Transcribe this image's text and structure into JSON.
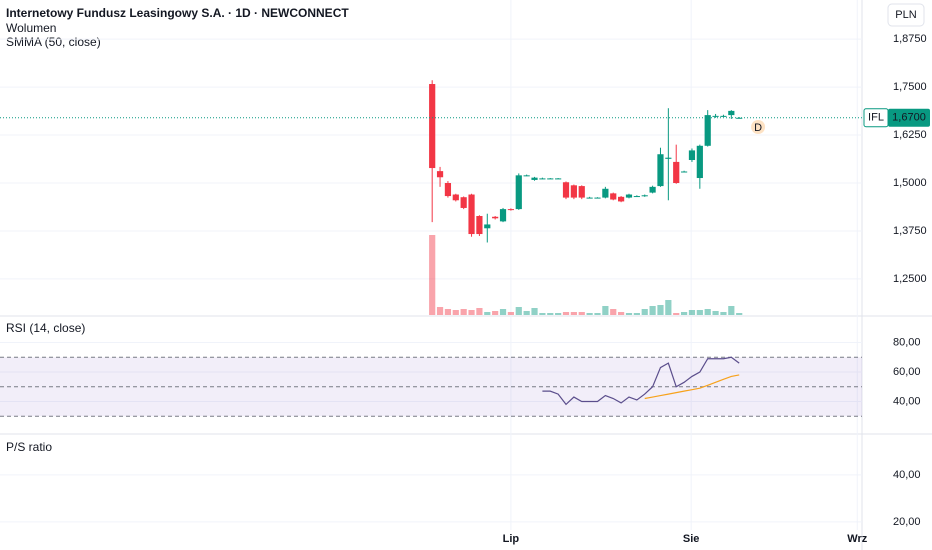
{
  "chart_data": {
    "type": "candlestick",
    "title": "Internetowy Fundusz Leasingowy S.A. · 1D · NEWCONNECT",
    "legend_items": [
      "Wolumen",
      "SMMA (50, close)"
    ],
    "currency": "PLN",
    "symbol": "IFL",
    "last_price": {
      "value": 1.67,
      "label": "1,6700"
    },
    "up_color": "#089981",
    "down_color": "#f23645",
    "grid": true,
    "x": [
      0,
      1,
      2,
      3,
      4,
      5,
      6,
      7,
      8,
      9,
      10,
      11,
      12,
      13,
      14,
      15,
      16,
      17,
      18,
      19,
      20,
      21,
      22,
      23,
      24,
      25,
      26,
      27,
      28,
      29,
      30,
      31,
      32,
      33,
      34,
      35,
      36,
      37,
      38,
      39
    ],
    "open": [
      1.758,
      1.531,
      1.5,
      1.47,
      1.463,
      1.47,
      1.414,
      1.382,
      1.412,
      1.4,
      1.432,
      1.432,
      1.52,
      1.508,
      1.512,
      1.512,
      1.512,
      1.502,
      1.494,
      1.492,
      1.462,
      1.462,
      1.462,
      1.473,
      1.464,
      1.462,
      1.466,
      1.466,
      1.475,
      1.492,
      1.563,
      1.555,
      1.53,
      1.56,
      1.513,
      1.597,
      1.675,
      1.675,
      1.677,
      1.67
    ],
    "high": [
      1.768,
      1.542,
      1.505,
      1.472,
      1.465,
      1.472,
      1.416,
      1.42,
      1.414,
      1.435,
      1.434,
      1.525,
      1.522,
      1.516,
      1.514,
      1.513,
      1.513,
      1.504,
      1.496,
      1.494,
      1.464,
      1.463,
      1.49,
      1.475,
      1.466,
      1.472,
      1.468,
      1.47,
      1.493,
      1.592,
      1.695,
      1.6,
      1.532,
      1.59,
      1.6,
      1.69,
      1.68,
      1.678,
      1.69,
      1.672
    ],
    "low": [
      1.398,
      1.49,
      1.462,
      1.452,
      1.432,
      1.36,
      1.362,
      1.345,
      1.405,
      1.398,
      1.428,
      1.43,
      1.518,
      1.506,
      1.51,
      1.511,
      1.511,
      1.458,
      1.458,
      1.458,
      1.46,
      1.461,
      1.46,
      1.455,
      1.45,
      1.46,
      1.464,
      1.464,
      1.473,
      1.49,
      1.455,
      1.498,
      1.528,
      1.555,
      1.485,
      1.595,
      1.67,
      1.672,
      1.667,
      1.668
    ],
    "close": [
      1.539,
      1.515,
      1.466,
      1.455,
      1.435,
      1.367,
      1.367,
      1.392,
      1.408,
      1.432,
      1.43,
      1.52,
      1.52,
      1.514,
      1.512,
      1.512,
      1.512,
      1.462,
      1.462,
      1.462,
      1.462,
      1.462,
      1.485,
      1.457,
      1.452,
      1.47,
      1.466,
      1.468,
      1.49,
      1.575,
      1.566,
      1.5,
      1.53,
      1.585,
      1.597,
      1.677,
      1.675,
      1.675,
      1.688,
      1.67
    ],
    "volume": [
      80,
      8,
      6,
      5,
      6,
      5,
      7,
      3,
      4,
      6,
      3,
      8,
      4,
      7,
      2,
      2,
      2,
      3,
      3,
      3,
      2,
      2,
      9,
      6,
      3,
      2,
      2,
      6,
      9,
      10,
      15,
      2,
      3,
      5,
      5,
      6,
      4,
      3,
      9,
      2
    ],
    "xlim": [
      -54.9,
      54.6
    ],
    "xticks": [
      {
        "value": 10,
        "label": "Lip"
      },
      {
        "value": 32.9,
        "label": "Sie"
      },
      {
        "value": 54,
        "label": "Wrz"
      }
    ],
    "ylim": [
      1.156,
      1.977
    ],
    "yticks": [
      {
        "value": 1.25,
        "label": "1,2500"
      },
      {
        "value": 1.375,
        "label": "1,3750"
      },
      {
        "value": 1.5,
        "label": "1,5000"
      },
      {
        "value": 1.625,
        "label": "1,6250"
      },
      {
        "value": 1.75,
        "label": "1,7500"
      },
      {
        "value": 1.875,
        "label": "1,8750"
      }
    ],
    "marker": {
      "x": 41.4,
      "y": 1.646,
      "label": "D"
    },
    "rsi": {
      "title": "RSI (14, close)",
      "ylim": [
        18.6,
        98
      ],
      "yticks": [
        {
          "value": 40,
          "label": "40,00"
        },
        {
          "value": 60,
          "label": "60,00"
        },
        {
          "value": 80,
          "label": "80,00"
        }
      ],
      "bands": [
        30,
        50,
        70
      ],
      "series": [
        {
          "color": "#5b4e8c",
          "values": [
            null,
            null,
            null,
            null,
            null,
            null,
            null,
            null,
            null,
            null,
            null,
            null,
            null,
            null,
            47,
            47,
            45,
            38,
            43,
            40,
            40,
            40,
            44,
            42,
            39,
            43,
            41,
            45,
            50,
            63,
            66,
            50,
            53,
            57,
            60,
            69,
            69,
            69,
            70,
            66
          ]
        },
        {
          "color": "#f7a21b",
          "values": [
            null,
            null,
            null,
            null,
            null,
            null,
            null,
            null,
            null,
            null,
            null,
            null,
            null,
            null,
            null,
            null,
            null,
            null,
            null,
            null,
            null,
            null,
            null,
            null,
            null,
            null,
            null,
            42,
            43,
            44,
            45,
            46,
            47,
            48,
            49,
            51,
            53,
            55,
            57,
            58
          ]
        }
      ]
    },
    "ps": {
      "title": "P/S ratio",
      "ylim": [
        12.3,
        57
      ],
      "yticks": [
        {
          "value": 20,
          "label": "20,00"
        },
        {
          "value": 40,
          "label": "40,00"
        }
      ]
    }
  }
}
